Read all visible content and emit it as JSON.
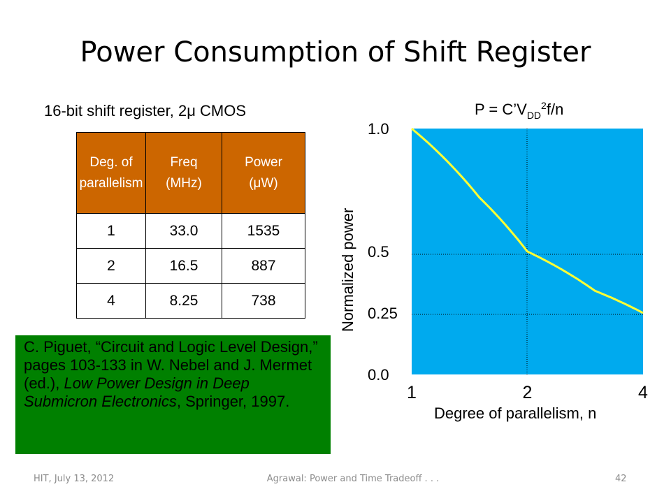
{
  "slide": {
    "title": "Power Consumption of Shift Register"
  },
  "table": {
    "caption": "16-bit shift register, 2μ CMOS",
    "headers": [
      {
        "line1": "Deg. of",
        "line2": "parallelism"
      },
      {
        "line1": "Freq",
        "line2": "(MHz)"
      },
      {
        "line1": "Power",
        "line2": "(μW)"
      }
    ],
    "rows": [
      [
        "1",
        "33.0",
        "1535"
      ],
      [
        "2",
        "16.5",
        "887"
      ],
      [
        "4",
        "8.25",
        "738"
      ]
    ],
    "header_color": "#cc6600"
  },
  "citation": {
    "text_before": "C. Piguet, “Circuit and Logic Level Design,” pages 103-133 in W. Nebel and J. Mermet (ed.), ",
    "book_title": "Low Power Design in Deep Submicron Electronics",
    "text_after": ", Springer, 1997.",
    "background": "#008000"
  },
  "footer": {
    "date": "HIT, July 13, 2012",
    "title": "Agrawal: Power and Time Tradeoff . . .",
    "page": "42"
  },
  "chart_data": {
    "type": "line",
    "formula": {
      "prefix": "P = C’V",
      "subscript": "DD",
      "superscript": "2",
      "suffix": "f/n"
    },
    "xlabel": "Degree of parallelism, n",
    "ylabel": "Normalized power",
    "x_ticks": [
      "1",
      "2",
      "4"
    ],
    "y_ticks": [
      {
        "value": 1.0,
        "label": "1.0"
      },
      {
        "value": 0.5,
        "label": "0.5"
      },
      {
        "value": 0.25,
        "label": "0.25"
      },
      {
        "value": 0.0,
        "label": "0.0"
      }
    ],
    "series": [
      {
        "x": [
          1,
          1.5,
          2,
          3,
          4
        ],
        "y": [
          1.0,
          0.72,
          0.5,
          0.34,
          0.25
        ]
      }
    ],
    "ylim": [
      0,
      1
    ],
    "grid": true,
    "plot_background": "#00aaee",
    "line_color": "#ffff33"
  }
}
